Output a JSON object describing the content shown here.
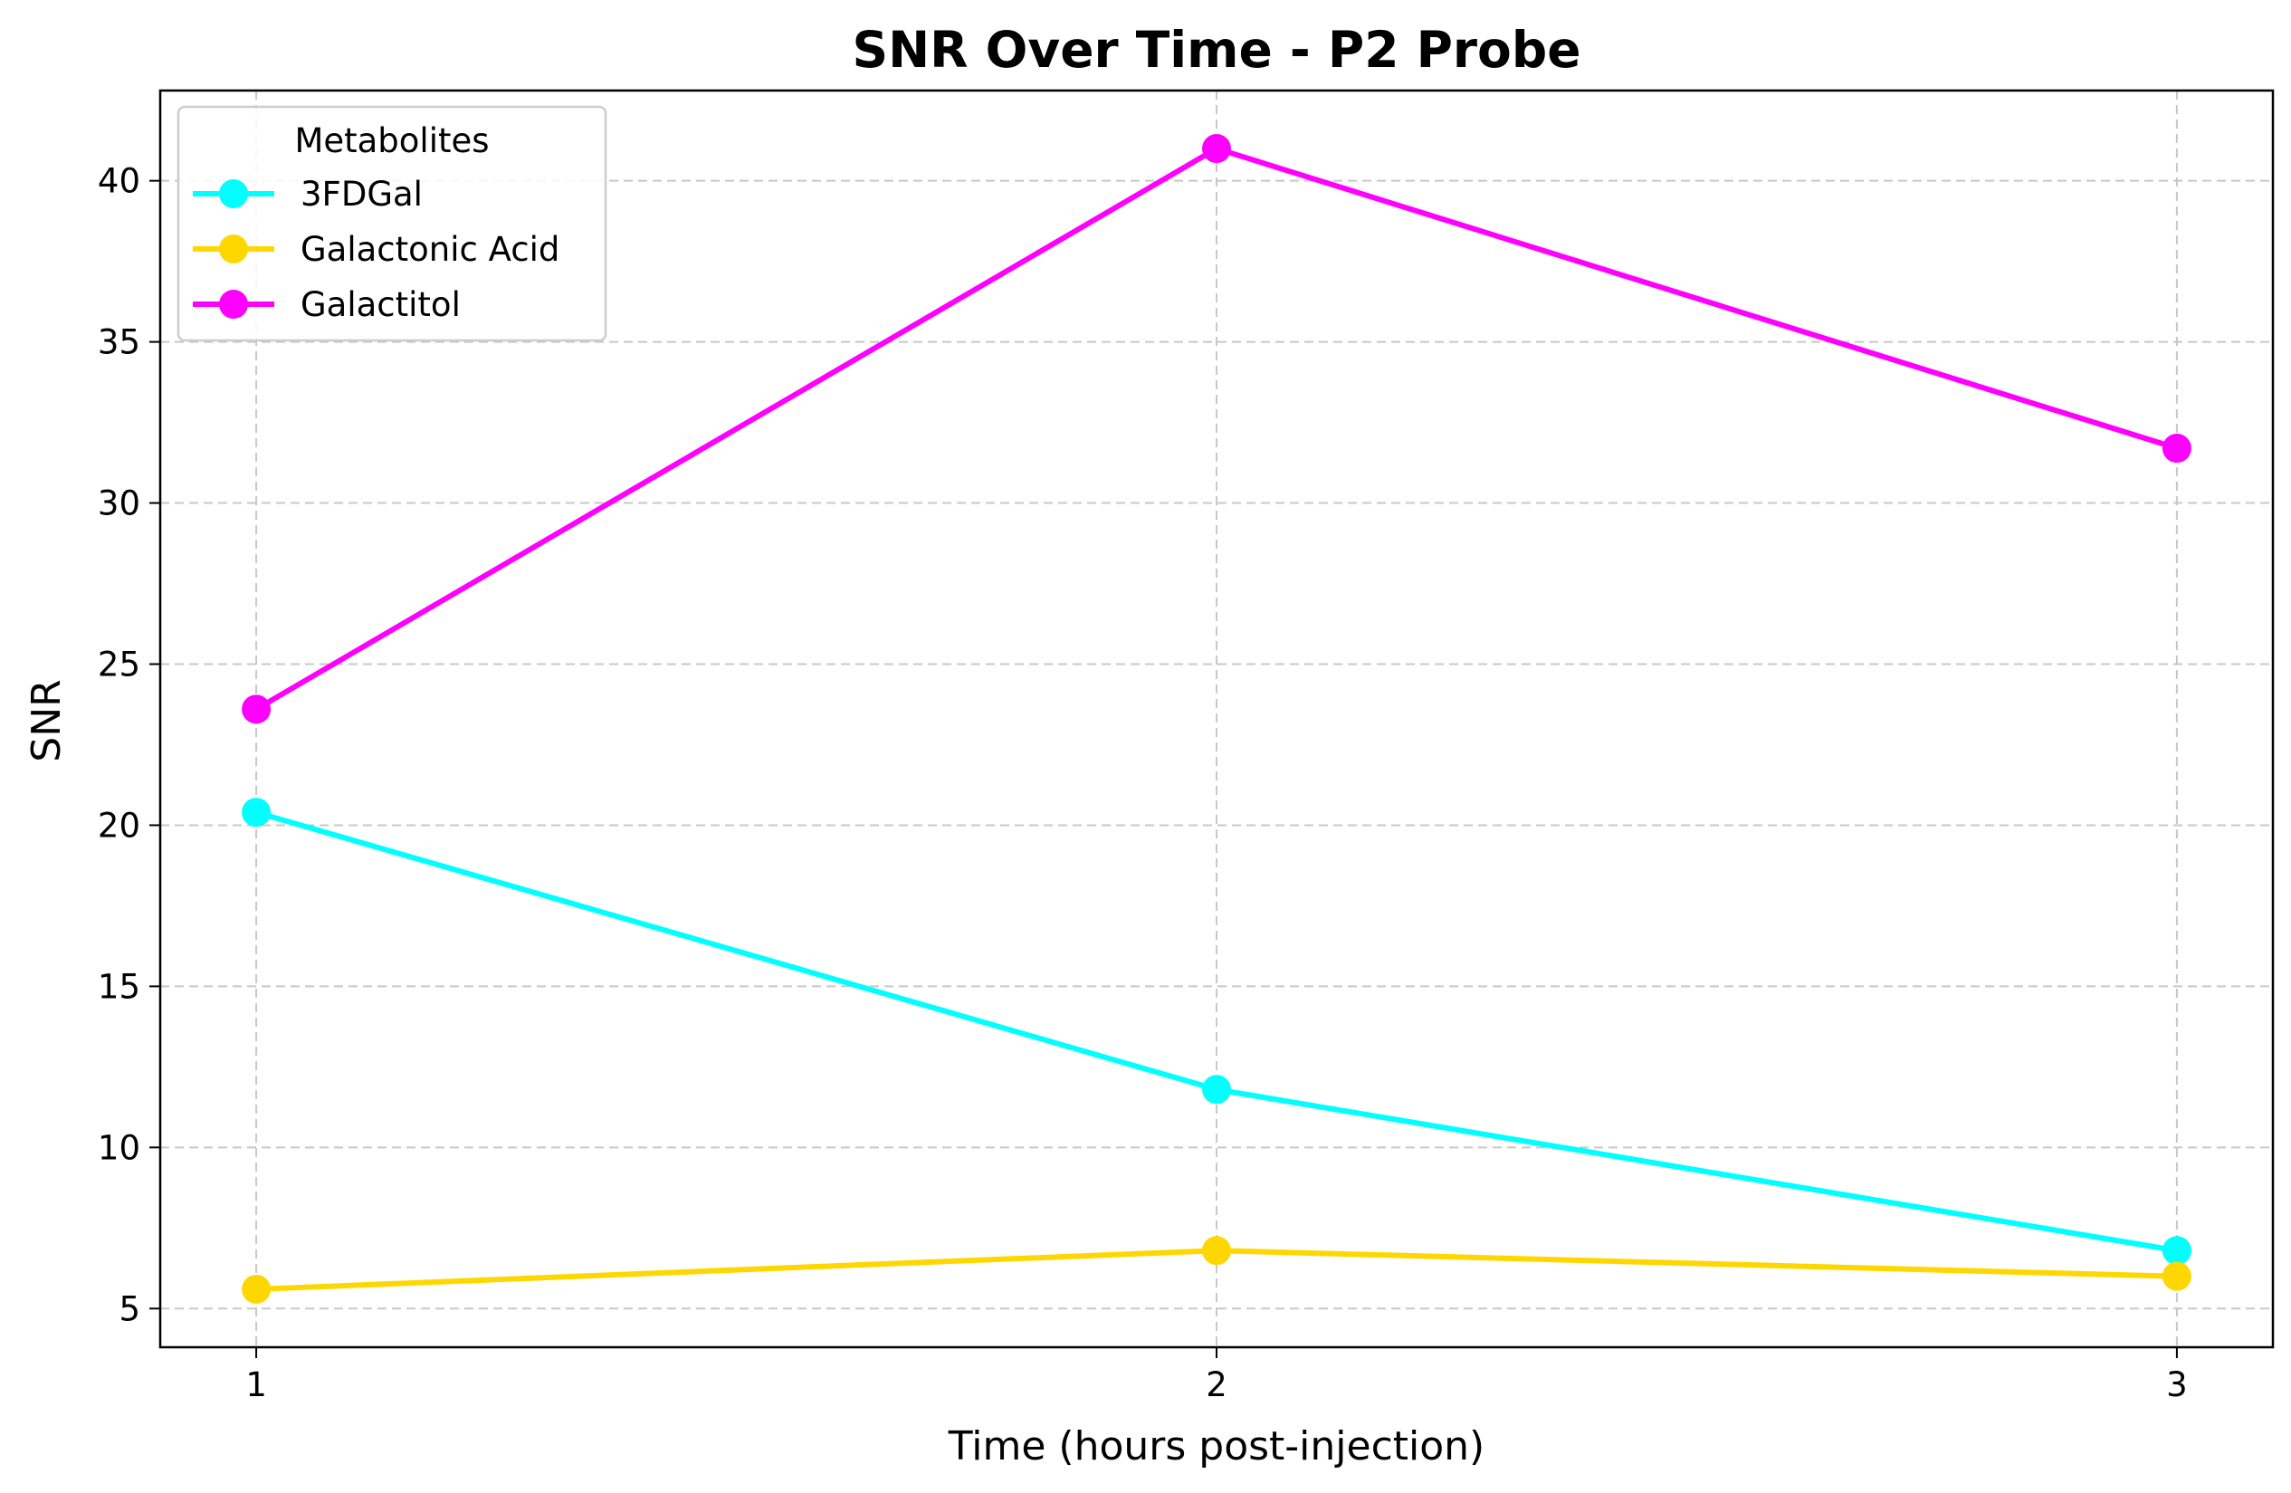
{
  "chart_data": {
    "type": "line",
    "title": "SNR Over Time - P2 Probe",
    "xlabel": "Time (hours post-injection)",
    "ylabel": "SNR",
    "x": [
      1,
      2,
      3
    ],
    "x_tick_labels": [
      "1",
      "2",
      "3"
    ],
    "xlim": [
      0.9,
      3.1
    ],
    "ylim": [
      3.8,
      42.8
    ],
    "y_ticks": [
      5,
      10,
      15,
      20,
      25,
      30,
      35,
      40
    ],
    "y_tick_labels": [
      "5",
      "10",
      "15",
      "20",
      "25",
      "30",
      "35",
      "40"
    ],
    "grid": true,
    "legend_title": "Metabolites",
    "legend_position": "top-left",
    "series": [
      {
        "name": "3FDGal",
        "color": "#00FFFF",
        "marker": "circle",
        "values": [
          20.4,
          11.8,
          6.8
        ]
      },
      {
        "name": "Galactonic Acid",
        "color": "#FFD700",
        "marker": "circle",
        "values": [
          5.6,
          6.8,
          6.0
        ]
      },
      {
        "name": "Galactitol",
        "color": "#FF00FF",
        "marker": "circle",
        "values": [
          23.6,
          41.0,
          31.7
        ]
      }
    ]
  }
}
